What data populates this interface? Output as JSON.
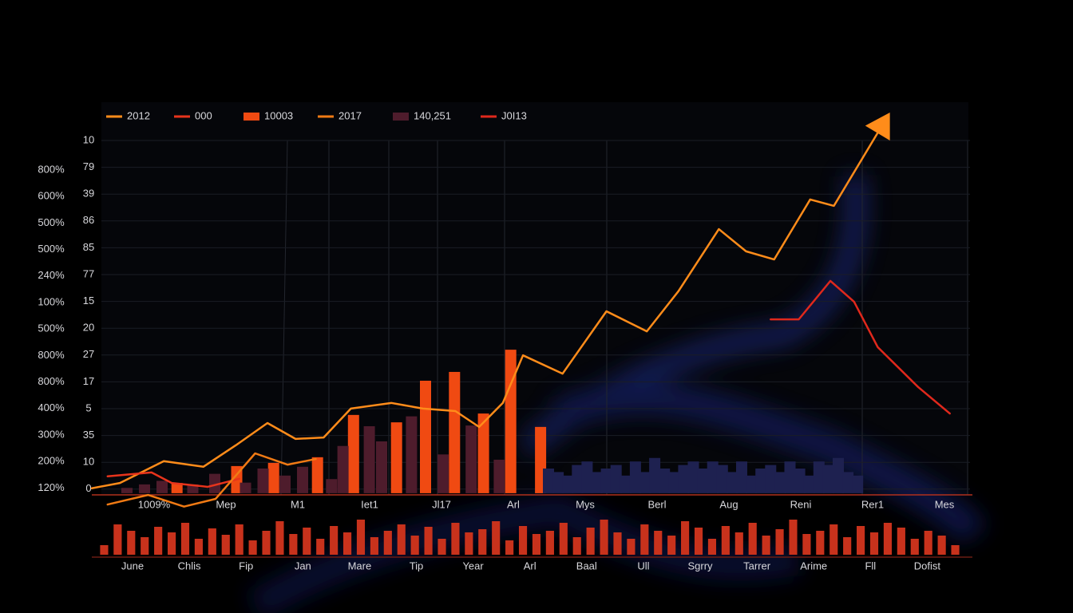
{
  "chart_data": [
    {
      "type": "combo",
      "grid": true,
      "legend": "top-left",
      "xlim": [
        0,
        100
      ],
      "ylim": [
        -5,
        110
      ],
      "y_labels_outer": [
        "800%",
        "600%",
        "500%",
        "500%",
        "240%",
        "100%",
        "500%",
        "800%",
        "800%",
        "400%",
        "300%",
        "200%",
        "120%"
      ],
      "y_labels_inner": [
        "10",
        "79",
        "39",
        "86",
        "85",
        "77",
        "15",
        "20",
        "27",
        "17",
        "5",
        "35",
        "10",
        "0"
      ],
      "x_labels": [
        "1009%",
        "Mep",
        "M1",
        "Iet1",
        "Jl17",
        "Arl",
        "Mys",
        "Berl",
        "Aug",
        "Reni",
        "Rer1",
        "Mes"
      ],
      "series": [
        {
          "name": "2012",
          "type": "line",
          "color": "#ff8c1a",
          "x": [
            0,
            3.2,
            8.2,
            12.7,
            16.4,
            20,
            23.2,
            26.4,
            29.5,
            34.1,
            37.7,
            41.4,
            44.1,
            46.8,
            49.1,
            53.6,
            58.6,
            63.2,
            66.8,
            71.4,
            74.5,
            77.7,
            81.8,
            84.5,
            90.5
          ],
          "values": [
            1.4,
            2.9,
            9.1,
            7.5,
            13.6,
            19.9,
            15.4,
            15.8,
            24,
            25.6,
            24,
            23.3,
            18.8,
            25.6,
            39.1,
            33.9,
            51.6,
            45.9,
            57.3,
            74.9,
            68.6,
            66.3,
            83.3,
            81.5,
            106.4
          ]
        },
        {
          "name": "000",
          "type": "line",
          "color": "#e8341c",
          "x": [
            1.8,
            6.8,
            9.1,
            13.2,
            16.8
          ],
          "values": [
            4.8,
            5.9,
            2.9,
            1.8,
            4.1
          ]
        },
        {
          "name": "10003",
          "type": "bar",
          "color": "#f04a12",
          "x": [
            9.7,
            16.5,
            20.7,
            25.7,
            29.8,
            34.7,
            38,
            41.3,
            44.6,
            47.7,
            51.1
          ],
          "values": [
            2.9,
            7.7,
            8.6,
            10.2,
            22.2,
            20.1,
            31.9,
            34.4,
            22.6,
            40.7,
            18.8
          ]
        },
        {
          "name": "2017",
          "type": "line",
          "color": "#f07a14",
          "x": [
            1.8,
            6.4,
            10.5,
            14.1,
            18.6,
            22.3,
            25.5
          ],
          "values": [
            -3.2,
            -0.5,
            -3.8,
            -1.6,
            11.3,
            8.1,
            9.7
          ]
        },
        {
          "name": "140,251",
          "type": "bar",
          "color": "#4e1c2c",
          "x": [
            4,
            6,
            8,
            11.5,
            14,
            17.5,
            19.5,
            22,
            24,
            27.3,
            28.6,
            31.6,
            33,
            36.4,
            40,
            43.2,
            46.4
          ],
          "values": [
            1.5,
            2.5,
            3.5,
            2.5,
            5.5,
            3,
            7,
            5,
            7.5,
            4,
            13.4,
            19,
            14.7,
            21.8,
            11,
            19.2,
            9.5
          ]
        },
        {
          "name": "J0I13",
          "type": "line",
          "color": "#e0281c",
          "x": [
            77.3,
            80.5,
            84.1,
            86.8,
            89.5,
            94.1,
            97.7
          ],
          "values": [
            49.3,
            49.3,
            60.2,
            54.3,
            41.4,
            30.1,
            22.6
          ]
        },
        {
          "type": "bar",
          "color": "#1e2150",
          "x": [
            52.0,
            53.1,
            54.2,
            55.3,
            56.4,
            57.5,
            58.6,
            59.7,
            60.8,
            61.9,
            63.0,
            64.1,
            65.2,
            66.3,
            67.4,
            68.5,
            69.6,
            70.7,
            71.8,
            72.9,
            74.0,
            75.1,
            76.2,
            77.3,
            78.4,
            79.5,
            80.6,
            81.7,
            82.8,
            83.9,
            85.0,
            86.1,
            87.2
          ],
          "values": [
            7,
            6,
            5,
            8,
            9,
            6,
            7,
            8,
            5,
            9,
            6,
            10,
            7,
            6,
            8,
            9,
            7,
            9,
            8,
            6,
            9,
            5,
            7,
            8,
            6,
            9,
            7,
            5,
            9,
            8,
            10,
            6,
            5
          ]
        }
      ]
    },
    {
      "type": "bar",
      "color": "#c8321c",
      "ylim": [
        0,
        50
      ],
      "x_labels": [
        "June",
        "Chlis",
        "Fip",
        "Jan",
        "Mare",
        "Tip",
        "Year",
        "Arl",
        "Baal",
        "Ull",
        "Sgrry",
        "Tarrer",
        "Arime",
        "Fll",
        "Dofist"
      ],
      "values": [
        12,
        38,
        30,
        22,
        35,
        28,
        40,
        20,
        33,
        25,
        38,
        18,
        30,
        42,
        26,
        34,
        20,
        36,
        28,
        44,
        22,
        30,
        38,
        24,
        35,
        20,
        40,
        28,
        32,
        42,
        18,
        36,
        26,
        30,
        40,
        22,
        34,
        44,
        28,
        20,
        38,
        30,
        24,
        42,
        34,
        20,
        36,
        28,
        40,
        24,
        32,
        44,
        26,
        30,
        38,
        22,
        36,
        28,
        40,
        34,
        20,
        30,
        24,
        12
      ]
    }
  ]
}
